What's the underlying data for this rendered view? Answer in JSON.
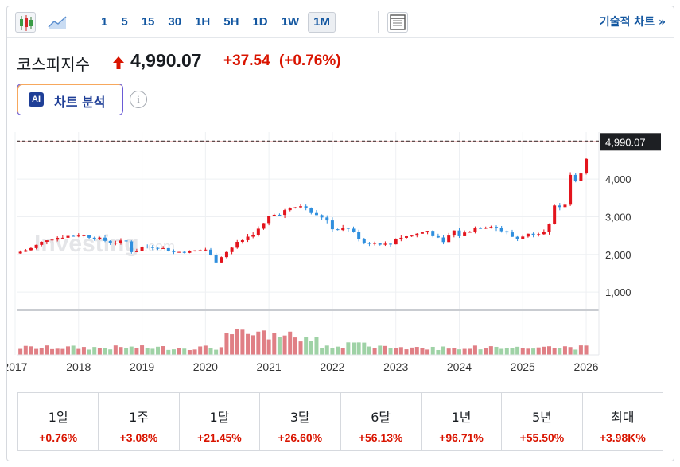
{
  "toolbar": {
    "intervals": [
      "1",
      "5",
      "15",
      "30",
      "1H",
      "5H",
      "1D",
      "1W",
      "1M"
    ],
    "active_interval": "1M",
    "technical_link": "기술적 차트 »"
  },
  "header": {
    "name": "코스피지수",
    "direction_icon": "up-arrow-icon",
    "price": "4,990.07",
    "change": "+37.54",
    "change_pct": "(+0.76%)"
  },
  "ai_button": {
    "badge": "AI",
    "label": "차트 분석"
  },
  "info_icon": "i",
  "watermark": {
    "brand": "Investing",
    "suffix": ".com"
  },
  "colors": {
    "up": "#e3141d",
    "down": "#2f8fde",
    "volume_up": "#e07f85",
    "volume_down": "#9fd2a6",
    "link": "#1256a0",
    "accent_text": "#d91400"
  },
  "chart_data": {
    "type": "candlestick",
    "period": "monthly",
    "x_labels": [
      "2017",
      "2018",
      "2019",
      "2020",
      "2021",
      "2022",
      "2023",
      "2024",
      "2025",
      "2026"
    ],
    "x_range": [
      2017.0,
      2026.2
    ],
    "y_labels": [
      "4,000",
      "3,000",
      "2,000",
      "1,000"
    ],
    "y_ticks": [
      4000,
      3000,
      2000,
      1000
    ],
    "ylim": [
      600,
      5250
    ],
    "current_price_label": "4,990.07",
    "current_price": 4990.07,
    "close_series": [
      [
        2017.0,
        2026
      ],
      [
        2017.25,
        2160
      ],
      [
        2017.5,
        2400
      ],
      [
        2017.75,
        2470
      ],
      [
        2018.0,
        2520
      ],
      [
        2018.25,
        2450
      ],
      [
        2018.5,
        2320
      ],
      [
        2018.75,
        2340
      ],
      [
        2018.85,
        2030
      ],
      [
        2019.0,
        2200
      ],
      [
        2019.25,
        2200
      ],
      [
        2019.5,
        2060
      ],
      [
        2019.75,
        2080
      ],
      [
        2020.0,
        2130
      ],
      [
        2020.2,
        1750
      ],
      [
        2020.25,
        1950
      ],
      [
        2020.5,
        2300
      ],
      [
        2020.8,
        2600
      ],
      [
        2020.95,
        2870
      ],
      [
        2021.0,
        3000
      ],
      [
        2021.25,
        3150
      ],
      [
        2021.5,
        3290
      ],
      [
        2021.75,
        3020
      ],
      [
        2021.9,
        2980
      ],
      [
        2022.0,
        2680
      ],
      [
        2022.25,
        2700
      ],
      [
        2022.5,
        2320
      ],
      [
        2022.75,
        2290
      ],
      [
        2022.9,
        2240
      ],
      [
        2023.0,
        2430
      ],
      [
        2023.25,
        2500
      ],
      [
        2023.5,
        2630
      ],
      [
        2023.75,
        2300
      ],
      [
        2023.9,
        2650
      ],
      [
        2024.0,
        2500
      ],
      [
        2024.25,
        2700
      ],
      [
        2024.5,
        2770
      ],
      [
        2024.75,
        2560
      ],
      [
        2024.9,
        2400
      ],
      [
        2025.0,
        2500
      ],
      [
        2025.25,
        2580
      ],
      [
        2025.4,
        2700
      ],
      [
        2025.5,
        3250
      ],
      [
        2025.65,
        3180
      ],
      [
        2025.75,
        4100
      ],
      [
        2025.85,
        4000
      ],
      [
        2025.95,
        4220
      ],
      [
        2026.08,
        4990.07
      ]
    ]
  },
  "performance": [
    {
      "label": "1일",
      "value": "+0.76%"
    },
    {
      "label": "1주",
      "value": "+3.08%"
    },
    {
      "label": "1달",
      "value": "+21.45%"
    },
    {
      "label": "3달",
      "value": "+26.60%"
    },
    {
      "label": "6달",
      "value": "+56.13%"
    },
    {
      "label": "1년",
      "value": "+96.71%"
    },
    {
      "label": "5년",
      "value": "+55.50%"
    },
    {
      "label": "최대",
      "value": "+3.98K%"
    }
  ]
}
